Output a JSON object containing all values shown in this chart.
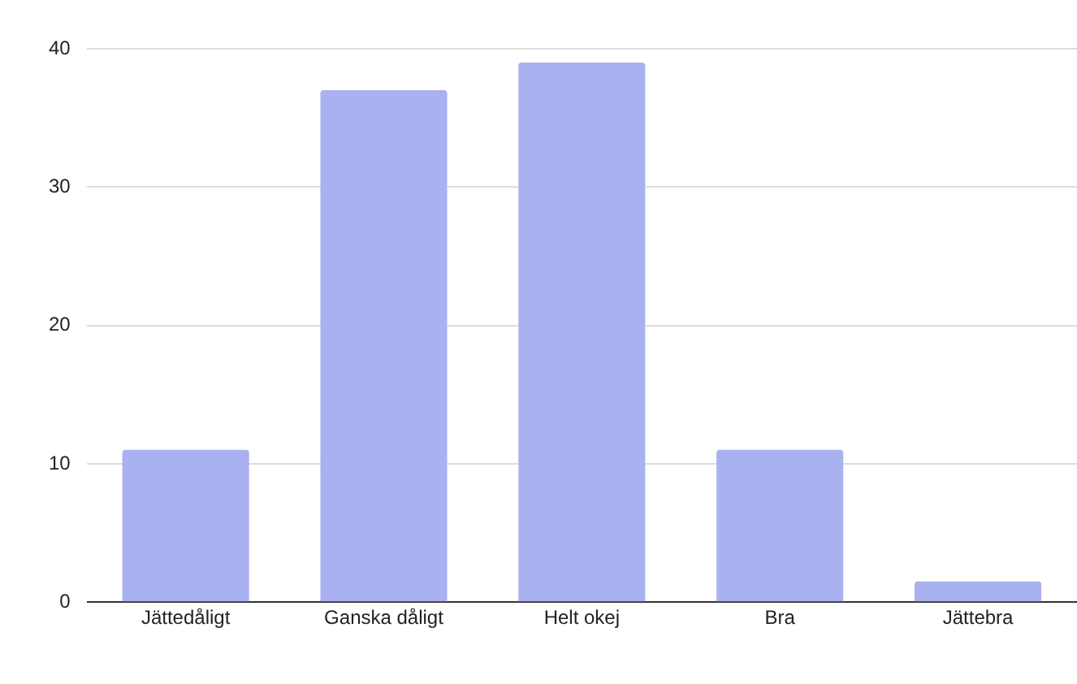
{
  "chart_data": {
    "type": "bar",
    "categories": [
      "Jättedåligt",
      "Ganska dåligt",
      "Helt okej",
      "Bra",
      "Jättebra"
    ],
    "values": [
      11,
      37,
      39,
      11,
      1.5
    ],
    "color": "#a9b1f1",
    "ylim": [
      0,
      40
    ],
    "yticks": [
      0,
      10,
      20,
      30,
      40
    ],
    "grid": "y"
  }
}
